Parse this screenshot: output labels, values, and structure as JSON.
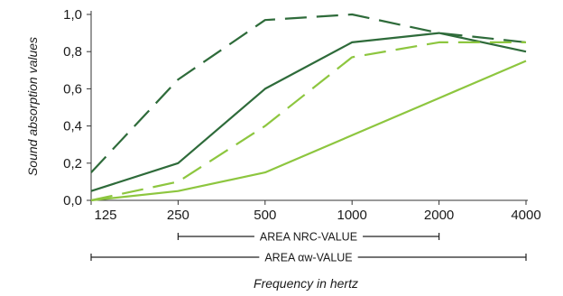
{
  "chart_data": {
    "type": "line",
    "xlabel": "Frequency in hertz",
    "ylabel": "Sound absorption values",
    "x": [
      "125",
      "250",
      "500",
      "1000",
      "2000",
      "4000"
    ],
    "yticks": [
      "0,0",
      "0,2",
      "0,4",
      "0,6",
      "0,8",
      "1,0"
    ],
    "ylim": [
      0,
      1
    ],
    "grid": false,
    "series": [
      {
        "color": "#2e6b3a",
        "dash": "long-dash",
        "values": [
          0.15,
          0.65,
          0.97,
          1.0,
          0.9,
          0.85
        ]
      },
      {
        "color": "#2e6b3a",
        "dash": "solid",
        "values": [
          0.05,
          0.2,
          0.6,
          0.85,
          0.9,
          0.8
        ]
      },
      {
        "color": "#8dc63f",
        "dash": "long-dash",
        "values": [
          0.0,
          0.1,
          0.4,
          0.77,
          0.85,
          0.85
        ]
      },
      {
        "color": "#8dc63f",
        "dash": "solid",
        "values": [
          0.0,
          0.05,
          0.15,
          0.35,
          0.55,
          0.75
        ]
      }
    ],
    "ranges": [
      {
        "label": "AREA NRC-VALUE",
        "from": "250",
        "to": "2000"
      },
      {
        "label": "AREA αw-VALUE",
        "from": "125",
        "to": "4000"
      }
    ]
  }
}
